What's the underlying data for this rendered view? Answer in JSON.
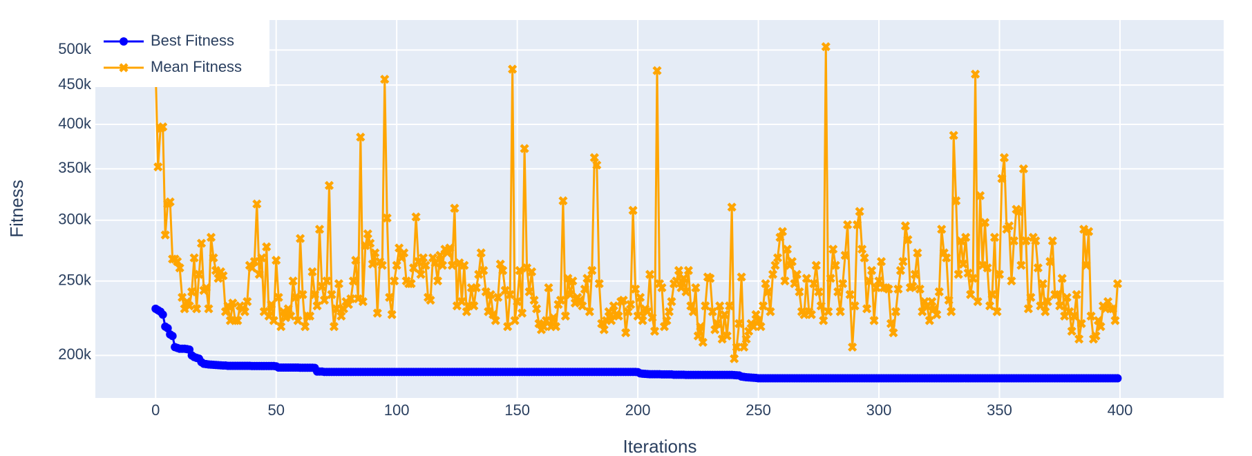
{
  "chart_data": {
    "type": "line",
    "xlabel": "Iterations",
    "ylabel": "Fitness",
    "yscale": "log",
    "grid": true,
    "legend": "top-left",
    "xlim": [
      -25,
      443
    ],
    "ylim": [
      176000,
      547000
    ],
    "xticks": [
      0,
      50,
      100,
      150,
      200,
      250,
      300,
      350,
      400
    ],
    "yticks": [
      {
        "value": 200000,
        "label": "200k"
      },
      {
        "value": 250000,
        "label": "250k"
      },
      {
        "value": 300000,
        "label": "300k"
      },
      {
        "value": 350000,
        "label": "350k"
      },
      {
        "value": 400000,
        "label": "400k"
      },
      {
        "value": 450000,
        "label": "450k"
      },
      {
        "value": 500000,
        "label": "500k"
      }
    ],
    "x": [
      0,
      1,
      2,
      3,
      4,
      5,
      6,
      7,
      8,
      9,
      10,
      11,
      12,
      13,
      14,
      15,
      16,
      17,
      18,
      19,
      20,
      21,
      22,
      23,
      24,
      25,
      26,
      27,
      28,
      29,
      30,
      31,
      32,
      33,
      34,
      35,
      36,
      37,
      38,
      39,
      40,
      41,
      42,
      43,
      44,
      45,
      46,
      47,
      48,
      49,
      50,
      51,
      52,
      53,
      54,
      55,
      56,
      57,
      58,
      59,
      60,
      61,
      62,
      63,
      64,
      65,
      66,
      67,
      68,
      69,
      70,
      71,
      72,
      73,
      74,
      75,
      76,
      77,
      78,
      79,
      80,
      81,
      82,
      83,
      84,
      85,
      86,
      87,
      88,
      89,
      90,
      91,
      92,
      93,
      94,
      95,
      96,
      97,
      98,
      99,
      100,
      101,
      102,
      103,
      104,
      105,
      106,
      107,
      108,
      109,
      110,
      111,
      112,
      113,
      114,
      115,
      116,
      117,
      118,
      119,
      120,
      121,
      122,
      123,
      124,
      125,
      126,
      127,
      128,
      129,
      130,
      131,
      132,
      133,
      134,
      135,
      136,
      137,
      138,
      139,
      140,
      141,
      142,
      143,
      144,
      145,
      146,
      147,
      148,
      149,
      150,
      151,
      152,
      153,
      154,
      155,
      156,
      157,
      158,
      159,
      160,
      161,
      162,
      163,
      164,
      165,
      166,
      167,
      168,
      169,
      170,
      171,
      172,
      173,
      174,
      175,
      176,
      177,
      178,
      179,
      180,
      181,
      182,
      183,
      184,
      185,
      186,
      187,
      188,
      189,
      190,
      191,
      192,
      193,
      194,
      195,
      196,
      197,
      198,
      199,
      200,
      201,
      202,
      203,
      204,
      205,
      206,
      207,
      208,
      209,
      210,
      211,
      212,
      213,
      214,
      215,
      216,
      217,
      218,
      219,
      220,
      221,
      222,
      223,
      224,
      225,
      226,
      227,
      228,
      229,
      230,
      231,
      232,
      233,
      234,
      235,
      236,
      237,
      238,
      239,
      240,
      241,
      242,
      243,
      244,
      245,
      246,
      247,
      248,
      249,
      250,
      251,
      252,
      253,
      254,
      255,
      256,
      257,
      258,
      259,
      260,
      261,
      262,
      263,
      264,
      265,
      266,
      267,
      268,
      269,
      270,
      271,
      272,
      273,
      274,
      275,
      276,
      277,
      278,
      279,
      280,
      281,
      282,
      283,
      284,
      285,
      286,
      287,
      288,
      289,
      290,
      291,
      292,
      293,
      294,
      295,
      296,
      297,
      298,
      299,
      300,
      301,
      302,
      303,
      304,
      305,
      306,
      307,
      308,
      309,
      310,
      311,
      312,
      313,
      314,
      315,
      316,
      317,
      318,
      319,
      320,
      321,
      322,
      323,
      324,
      325,
      326,
      327,
      328,
      329,
      330,
      331,
      332,
      333,
      334,
      335,
      336,
      337,
      338,
      339,
      340,
      341,
      342,
      343,
      344,
      345,
      346,
      347,
      348,
      349,
      350,
      351,
      352,
      353,
      354,
      355,
      356,
      357,
      358,
      359,
      360,
      361,
      362,
      363,
      364,
      365,
      366,
      367,
      368,
      369,
      370,
      371,
      372,
      373,
      374,
      375,
      376,
      377,
      378,
      379,
      380,
      381,
      382,
      383,
      384,
      385,
      386,
      387,
      388,
      389,
      390,
      391,
      392,
      393,
      394,
      395,
      396,
      397,
      398,
      399
    ],
    "series": [
      {
        "name": "Best Fitness",
        "color": "#0000ff",
        "marker": "circle",
        "values": [
          230000,
          229000,
          228000,
          226000,
          218000,
          217000,
          213000,
          212000,
          205000,
          204500,
          204000,
          204000,
          204000,
          203800,
          203500,
          200000,
          199000,
          198500,
          198000,
          196000,
          195000,
          194800,
          194600,
          194500,
          194400,
          194300,
          194200,
          194100,
          194000,
          194000,
          193800,
          193800,
          193800,
          193800,
          193800,
          193800,
          193800,
          193800,
          193800,
          193800,
          193700,
          193700,
          193700,
          193700,
          193700,
          193700,
          193700,
          193700,
          193700,
          193700,
          193500,
          192800,
          192800,
          192800,
          192800,
          192800,
          192800,
          192800,
          192800,
          192800,
          192700,
          192700,
          192700,
          192700,
          192700,
          192700,
          192600,
          190500,
          190500,
          190500,
          190300,
          190300,
          190300,
          190300,
          190300,
          190300,
          190300,
          190300,
          190300,
          190300,
          190300,
          190300,
          190300,
          190300,
          190300,
          190300,
          190300,
          190300,
          190300,
          190300,
          190300,
          190300,
          190300,
          190300,
          190300,
          190300,
          190300,
          190300,
          190300,
          190300,
          190300,
          190300,
          190300,
          190300,
          190300,
          190300,
          190300,
          190300,
          190300,
          190300,
          190300,
          190300,
          190300,
          190300,
          190300,
          190300,
          190300,
          190300,
          190300,
          190300,
          190300,
          190300,
          190300,
          190300,
          190300,
          190300,
          190300,
          190300,
          190300,
          190300,
          190300,
          190300,
          190300,
          190300,
          190300,
          190300,
          190300,
          190300,
          190300,
          190300,
          190300,
          190300,
          190300,
          190300,
          190300,
          190300,
          190300,
          190300,
          190300,
          190300,
          190300,
          190300,
          190300,
          190300,
          190300,
          190300,
          190300,
          190300,
          190300,
          190300,
          190300,
          190300,
          190300,
          190300,
          190300,
          190300,
          190300,
          190300,
          190300,
          190300,
          190300,
          190300,
          190300,
          190300,
          190300,
          190300,
          190300,
          190300,
          190300,
          190300,
          190300,
          190300,
          190300,
          190300,
          190300,
          190300,
          190300,
          190300,
          190300,
          190300,
          190300,
          190300,
          190300,
          190300,
          190300,
          190300,
          190300,
          190300,
          190300,
          190300,
          190200,
          189500,
          189300,
          189200,
          189100,
          189000,
          189000,
          189000,
          189000,
          189000,
          188900,
          188900,
          188900,
          188900,
          188900,
          188700,
          188700,
          188700,
          188700,
          188700,
          188600,
          188600,
          188600,
          188600,
          188600,
          188600,
          188600,
          188600,
          188600,
          188600,
          188600,
          188600,
          188600,
          188600,
          188600,
          188600,
          188600,
          188600,
          188600,
          188600,
          188500,
          188400,
          188300,
          187700,
          187500,
          187300,
          187200,
          187100,
          187000,
          186900,
          186700,
          186700,
          186700,
          186700,
          186700,
          186700,
          186700,
          186700,
          186700,
          186700,
          186700,
          186700,
          186700,
          186700,
          186700,
          186700,
          186700,
          186700,
          186700,
          186700,
          186700,
          186700,
          186700,
          186700,
          186700,
          186700,
          186700,
          186700,
          186700,
          186700,
          186700,
          186700,
          186700,
          186700,
          186700,
          186700,
          186700,
          186700,
          186700,
          186700,
          186700,
          186700,
          186700,
          186700,
          186700,
          186700,
          186700,
          186700,
          186700,
          186700,
          186700,
          186700,
          186700,
          186700,
          186700,
          186700,
          186700,
          186700,
          186700,
          186700,
          186700,
          186700,
          186700,
          186700,
          186700,
          186700,
          186700,
          186700,
          186700,
          186700,
          186700,
          186700,
          186700,
          186700,
          186700,
          186700,
          186700,
          186700,
          186700,
          186700,
          186700,
          186700,
          186700,
          186700,
          186700,
          186700,
          186700,
          186700,
          186700,
          186700,
          186700,
          186700,
          186700,
          186700,
          186700,
          186700,
          186700,
          186700,
          186700,
          186700,
          186700,
          186700,
          186700,
          186700,
          186700,
          186700,
          186700,
          186700,
          186700,
          186700,
          186700,
          186700,
          186700,
          186700,
          186700,
          186700,
          186700,
          186700,
          186700,
          186700,
          186700,
          186700,
          186700,
          186700,
          186700,
          186700,
          186700,
          186700,
          186700,
          186700,
          186700,
          186700,
          186700,
          186700,
          186700,
          186700,
          186700,
          186700,
          186700,
          186700,
          186700,
          186700,
          186700,
          186700,
          186700,
          186700,
          186700,
          186700,
          186700,
          186700
        ]
      },
      {
        "name": "Mean Fitness",
        "color": "#ffa500",
        "marker": "x",
        "values": [
          470000,
          352000,
          395000,
          397000,
          287000,
          315000,
          317000,
          267000,
          267000,
          265000,
          260000,
          238000,
          230000,
          235000,
          232000,
          242000,
          268000,
          230000,
          255000,
          280000,
          243000,
          245000,
          230000,
          285000,
          268000,
          258000,
          252000,
          257000,
          254000,
          228000,
          232000,
          222000,
          234000,
          222000,
          222000,
          232000,
          230000,
          228000,
          235000,
          262000,
          260000,
          265000,
          315000,
          255000,
          268000,
          228000,
          277000,
          225000,
          233000,
          222000,
          266000,
          238000,
          218000,
          228000,
          224000,
          230000,
          225000,
          250000,
          238000,
          222000,
          284000,
          240000,
          218000,
          225000,
          225000,
          257000,
          240000,
          232000,
          292000,
          246000,
          236000,
          250000,
          333000,
          240000,
          218000,
          230000,
          248000,
          225000,
          230000,
          235000,
          233000,
          237000,
          250000,
          266000,
          237000,
          385000,
          235000,
          278000,
          288000,
          280000,
          263000,
          272000,
          227000,
          265000,
          262000,
          458000,
          302000,
          238000,
          226000,
          250000,
          262000,
          276000,
          268000,
          272000,
          250000,
          248000,
          248000,
          260000,
          303000,
          265000,
          255000,
          268000,
          262000,
          238000,
          236000,
          268000,
          264000,
          250000,
          270000,
          262000,
          275000,
          272000,
          276000,
          262000,
          311000,
          232000,
          264000,
          235000,
          262000,
          228000,
          232000,
          245000,
          232000,
          245000,
          255000,
          272000,
          258000,
          242000,
          228000,
          240000,
          226000,
          222000,
          238000,
          263000,
          258000,
          243000,
          218000,
          240000,
          472000,
          222000,
          235000,
          258000,
          227000,
          372000,
          260000,
          242000,
          257000,
          236000,
          230000,
          220000,
          216000,
          218000,
          222000,
          245000,
          218000,
          224000,
          218000,
          233000,
          236000,
          318000,
          225000,
          252000,
          240000,
          250000,
          234000,
          238000,
          236000,
          232000,
          244000,
          252000,
          228000,
          258000,
          362000,
          354000,
          248000,
          220000,
          216000,
          222000,
          228000,
          222000,
          232000,
          226000,
          225000,
          235000,
          236000,
          214000,
          228000,
          233000,
          309000,
          244000,
          225000,
          238000,
          222000,
          230000,
          228000,
          255000,
          224000,
          215000,
          470000,
          248000,
          245000,
          218000,
          222000,
          228000,
          235000,
          248000,
          250000,
          258000,
          245000,
          252000,
          242000,
          258000,
          232000,
          228000,
          245000,
          212000,
          218000,
          208000,
          232000,
          253000,
          252000,
          228000,
          216000,
          220000,
          232000,
          210000,
          226000,
          212000,
          232000,
          312000,
          198000,
          205000,
          220000,
          253000,
          205000,
          210000,
          215000,
          220000,
          218000,
          226000,
          222000,
          218000,
          232000,
          248000,
          242000,
          228000,
          255000,
          262000,
          268000,
          285000,
          290000,
          250000,
          275000,
          262000,
          265000,
          248000,
          255000,
          242000,
          228000,
          226000,
          252000,
          228000,
          226000,
          248000,
          262000,
          242000,
          232000,
          222000,
          505000,
          228000,
          252000,
          275000,
          262000,
          242000,
          228000,
          248000,
          270000,
          296000,
          240000,
          205000,
          232000,
          296000,
          308000,
          275000,
          268000,
          230000,
          250000,
          258000,
          222000,
          245000,
          250000,
          265000,
          245000,
          245000,
          244000,
          220000,
          214000,
          228000,
          244000,
          258000,
          265000,
          295000,
          283000,
          245000,
          246000,
          255000,
          272000,
          244000,
          228000,
          235000,
          232000,
          222000,
          235000,
          230000,
          226000,
          242000,
          292000,
          272000,
          268000,
          236000,
          228000,
          387000,
          318000,
          255000,
          282000,
          263000,
          285000,
          256000,
          240000,
          252000,
          465000,
          235000,
          323000,
          262000,
          298000,
          260000,
          232000,
          240000,
          285000,
          228000,
          255000,
          340000,
          362000,
          292000,
          295000,
          250000,
          282000,
          310000,
          308000,
          262000,
          350000,
          282000,
          230000,
          238000,
          285000,
          282000,
          260000,
          232000,
          248000,
          228000,
          235000,
          265000,
          282000,
          240000,
          240000,
          232000,
          252000,
          225000,
          238000,
          228000,
          215000,
          225000,
          240000,
          210000,
          220000,
          292000,
          262000,
          290000,
          225000,
          210000,
          212000,
          222000,
          218000,
          232000,
          230000,
          235000,
          230000,
          230000,
          222000,
          248000
        ]
      }
    ]
  }
}
